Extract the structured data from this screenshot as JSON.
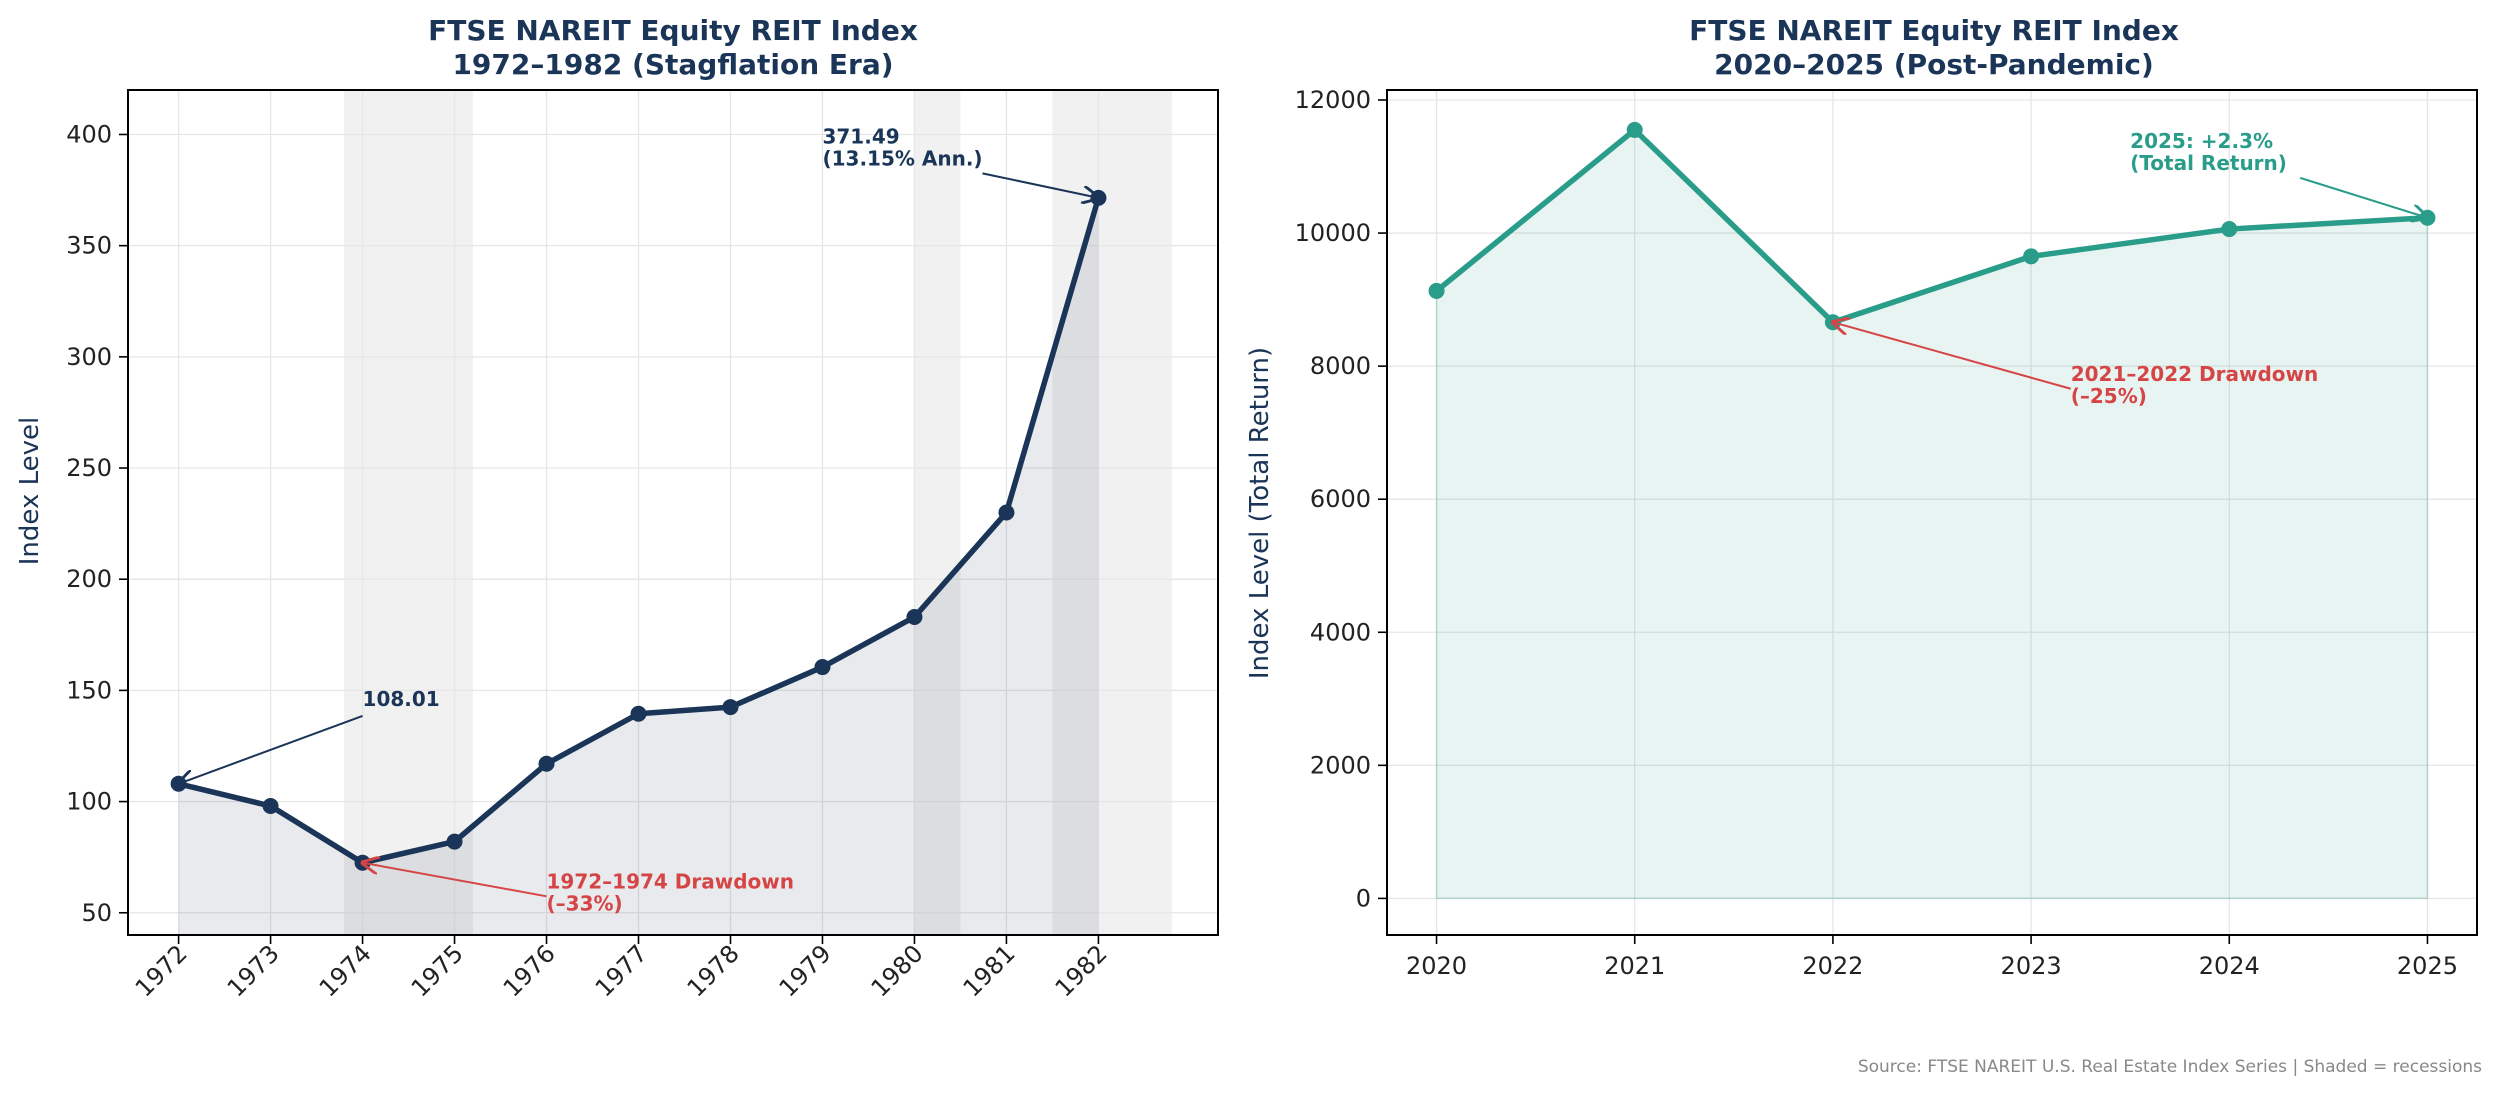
{
  "footer": {
    "source": "Source: FTSE NAREIT U.S. Real Estate Index Series | Shaded = recessions"
  },
  "colors": {
    "navy": "#1a3557",
    "teal": "#2a9d8a",
    "red": "#d64545",
    "shade": "#d9d9d9"
  },
  "chart_data": [
    {
      "type": "line",
      "title_line1": "FTSE NAREIT Equity REIT Index",
      "title_line2": "1972–1982 (Stagflation Era)",
      "xlabel": "",
      "ylabel": "Index Level",
      "ylim": [
        40,
        420
      ],
      "yticks": [
        50,
        100,
        150,
        200,
        250,
        300,
        350,
        400
      ],
      "x": [
        1972,
        1973,
        1974,
        1975,
        1976,
        1977,
        1978,
        1979,
        1980,
        1981,
        1982
      ],
      "values": [
        108.01,
        98,
        72.5,
        82,
        117,
        139.5,
        142.5,
        160.5,
        183,
        230,
        371.49
      ],
      "grid": true,
      "area_fill": true,
      "recessions": [
        [
          1973.8,
          1975.2
        ],
        [
          1980.0,
          1980.5
        ],
        [
          1981.5,
          1982.8
        ]
      ],
      "annotations": [
        {
          "line1": "108.01",
          "line2": "",
          "color": "navy",
          "point": [
            1972,
            108.01
          ],
          "text_at": [
            1974,
            143
          ]
        },
        {
          "line1": "371.49",
          "line2": "(13.15% Ann.)",
          "color": "navy",
          "point": [
            1982,
            371.49
          ],
          "text_at": [
            1979,
            396
          ]
        },
        {
          "line1": "1972–1974 Drawdown",
          "line2": "(–33%)",
          "color": "red",
          "point": [
            1974,
            72.5
          ],
          "text_at": [
            1976,
            61
          ]
        }
      ]
    },
    {
      "type": "line",
      "title_line1": "FTSE NAREIT Equity REIT Index",
      "title_line2": "2020–2025 (Post-Pandemic)",
      "xlabel": "",
      "ylabel": "Index Level (Total Return)",
      "ylim": [
        -550,
        12150
      ],
      "yticks": [
        0,
        2000,
        4000,
        6000,
        8000,
        10000,
        12000
      ],
      "x": [
        2020,
        2021,
        2022,
        2023,
        2024,
        2025
      ],
      "values": [
        9130,
        11550,
        8660,
        9650,
        10060,
        10230
      ],
      "grid": true,
      "area_fill": true,
      "annotations": [
        {
          "line1": "2025: +2.3%",
          "line2": "(Total Return)",
          "color": "teal",
          "point": [
            2025,
            10230
          ],
          "text_at": [
            2023.5,
            11280
          ]
        },
        {
          "line1": "2021–2022 Drawdown",
          "line2": "(–25%)",
          "color": "red",
          "point": [
            2022,
            8660
          ],
          "text_at": [
            2023.2,
            7780
          ]
        }
      ]
    }
  ]
}
